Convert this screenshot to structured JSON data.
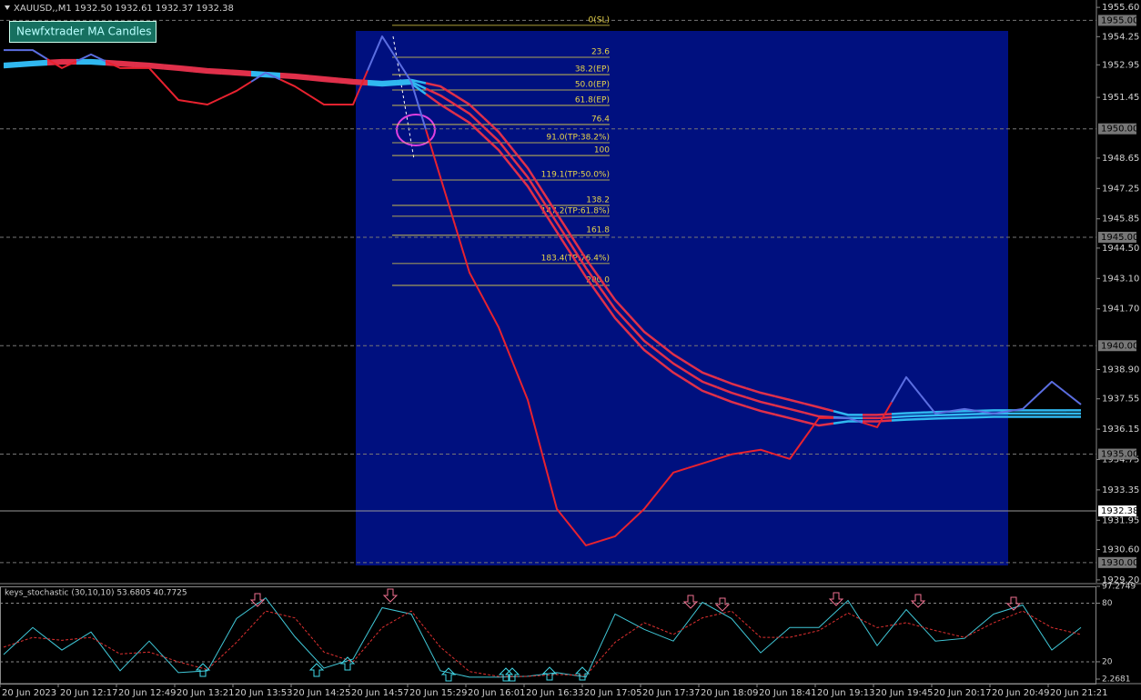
{
  "header": {
    "title": "XAUUSD,,M1  1932.50 1932.61 1932.37 1932.38"
  },
  "button": {
    "label": "Newfxtrader MA Candles"
  },
  "chart_data": [
    {
      "type": "line",
      "categories": [
        "20 Jun 2023",
        null,
        "20 Jun 12:17",
        null,
        "20 Jun 12:49",
        null,
        "20 Jun 13:21",
        null,
        "20 Jun 13:53",
        null,
        "20 Jun 14:25",
        null,
        "20 Jun 14:57",
        null,
        "20 Jun 15:29",
        null,
        "20 Jun 16:01",
        null,
        "20 Jun 16:33",
        null,
        "20 Jun 17:05",
        null,
        "20 Jun 17:37",
        null,
        "20 Jun 18:09",
        null,
        "20 Jun 18:41",
        null,
        "20 Jun 19:13",
        null,
        "20 Jun 19:45",
        null,
        "20 Jun 20:17",
        null,
        "20 Jun 20:49",
        null,
        "20 Jun 21:21",
        null
      ],
      "values": [
        1953.63,
        1953.63,
        1952.8,
        1953.43,
        1952.8,
        1952.8,
        1951.33,
        1951.12,
        1951.75,
        1952.59,
        1951.96,
        1951.12,
        1951.12,
        1954.26,
        1952.17,
        1947.77,
        1943.37,
        1940.85,
        1937.5,
        1932.47,
        1930.79,
        1931.21,
        1932.47,
        1934.15,
        1934.57,
        1934.99,
        1935.2,
        1934.78,
        1936.66,
        1936.66,
        1936.24,
        1938.55,
        1936.87,
        1937.08,
        1936.87,
        1937.08,
        1938.34,
        1937.29
      ],
      "up_color": "#5b6ee1",
      "down_color": "#e8222f",
      "ma_up_color": "#30b8f0",
      "ma_down_color": "#e0304a",
      "series": [
        {
          "values": [
            1953.0,
            1953.09,
            1953.17,
            1953.17,
            1953.09,
            1953.0,
            1952.88,
            1952.75,
            1952.67,
            1952.58,
            1952.5,
            1952.37,
            1952.25,
            1952.16,
            1952.25,
            1951.96,
            1951.12,
            1949.86,
            1948.19,
            1946.09,
            1944.0,
            1942.11,
            1940.64,
            1939.6,
            1938.76,
            1938.25,
            1937.83,
            1937.5,
            1937.16,
            1936.81,
            1936.81,
            1936.89,
            1936.94,
            1936.98,
            1937.02,
            1937.02,
            1937.02,
            1937.02
          ]
        },
        {
          "values": [
            1952.92,
            1953.01,
            1953.09,
            1953.09,
            1953.01,
            1952.92,
            1952.8,
            1952.67,
            1952.59,
            1952.5,
            1952.42,
            1952.29,
            1952.17,
            1952.08,
            1952.17,
            1951.54,
            1950.7,
            1949.44,
            1947.77,
            1945.67,
            1943.58,
            1941.69,
            1940.22,
            1939.18,
            1938.34,
            1937.83,
            1937.41,
            1937.08,
            1936.74,
            1936.66,
            1936.66,
            1936.74,
            1936.79,
            1936.83,
            1936.87,
            1936.87,
            1936.87,
            1936.87
          ]
        },
        {
          "values": [
            1952.84,
            1952.93,
            1953.01,
            1953.01,
            1952.93,
            1952.84,
            1952.72,
            1952.59,
            1952.51,
            1952.42,
            1952.34,
            1952.21,
            1952.09,
            1952.0,
            1952.09,
            1951.12,
            1950.28,
            1949.02,
            1947.35,
            1945.25,
            1943.16,
            1941.27,
            1939.8,
            1938.76,
            1937.92,
            1937.41,
            1936.99,
            1936.66,
            1936.32,
            1936.51,
            1936.51,
            1936.59,
            1936.64,
            1936.68,
            1936.72,
            1936.72,
            1936.72,
            1936.72
          ]
        }
      ],
      "ylim": [
        1929.07,
        1955.94
      ],
      "yticks": [
        {
          "value": 1955.6,
          "label": "1955.60"
        },
        1954.25,
        1952.95,
        1951.45,
        1948.65,
        1947.25,
        1945.85,
        {
          "value": 1944.5,
          "label": "1944.50"
        },
        {
          "value": 1943.1,
          "label": "1943.10"
        },
        {
          "value": 1941.7,
          "label": "1941.70"
        },
        {
          "value": 1938.9,
          "label": "1938.90"
        },
        1937.55,
        1936.15,
        1934.75,
        1933.35,
        1931.95,
        {
          "value": 1930.6,
          "label": "1930.60"
        },
        {
          "value": 1929.2,
          "label": "1929.20"
        }
      ],
      "levels": [
        {
          "value": 1955,
          "label": "1955.00"
        },
        {
          "value": 1950,
          "label": "1950.00"
        },
        {
          "value": 1945,
          "label": "1945.00"
        },
        {
          "value": 1940,
          "label": "1940.00"
        },
        {
          "value": 1935,
          "label": "1935.00"
        },
        {
          "value": 1930,
          "label": "1930.00"
        }
      ],
      "current_price": 1932.38,
      "fib_color": "#e8d44a",
      "fib_levels": [
        {
          "label": "0(SL)",
          "value": 1954.77
        },
        {
          "label": "23.6",
          "value": 1953.3
        },
        {
          "label": "38.2(EP)",
          "value": 1952.5
        },
        {
          "label": "50.0(EP)",
          "value": 1951.79
        },
        {
          "label": "61.8(EP)",
          "value": 1951.08
        },
        {
          "label": "76.4",
          "value": 1950.2
        },
        {
          "label": "91.0(TP:38.2%)",
          "value": 1949.36
        },
        {
          "label": "100",
          "value": 1948.77
        },
        {
          "label": "119.1(TP:50.0%)",
          "value": 1947.64
        },
        {
          "label": "138.2",
          "value": 1946.47
        },
        {
          "label": "147.2(TP:61.8%)",
          "value": 1945.97
        },
        {
          "label": "161.8",
          "value": 1945.09
        },
        {
          "label": "183.4(TP:76.4%)",
          "value": 1943.79
        },
        {
          "label": "200.0",
          "value": 1942.78
        }
      ]
    },
    {
      "type": "line",
      "title": "keys_stochastic (30,10,10) 53.6805 40.7725",
      "series": [
        {
          "color": "#40c8d8",
          "dashed": false,
          "values": [
            27.4,
            55.1,
            32.0,
            50.5,
            10.8,
            41.2,
            8.9,
            10.8,
            64.3,
            85.5,
            45.8,
            13.5,
            22.8,
            75.4,
            68.9,
            10.8,
            4.3,
            4.3,
            5.2,
            8.9,
            4.3,
            68.9,
            53.2,
            41.2,
            80.9,
            64.3,
            29.2,
            55.1,
            55.1,
            82.8,
            36.6,
            73.5,
            41.2,
            44.0,
            68.9,
            78.2,
            32.0,
            55.1
          ]
        },
        {
          "color": "#e03030",
          "dashed": true,
          "values": [
            35,
            45,
            42,
            45,
            28,
            30,
            20,
            12,
            40,
            72,
            65,
            30,
            20,
            55,
            72,
            35,
            10,
            5,
            5,
            7,
            6,
            40,
            60,
            48,
            65,
            72,
            45,
            45,
            52,
            70,
            55,
            60,
            52,
            45,
            60,
            72,
            55,
            48
          ]
        }
      ],
      "ylim": [
        2.2681,
        97.2749
      ],
      "yticks": [
        97.2749,
        80,
        20,
        2.2681
      ],
      "levels": [
        80,
        20
      ]
    }
  ]
}
